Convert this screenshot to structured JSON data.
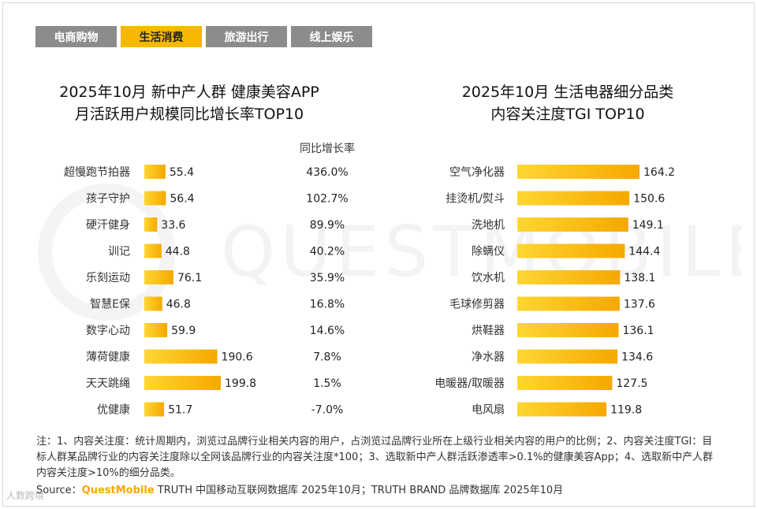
{
  "tabs": [
    {
      "label": "电商购物",
      "active": false
    },
    {
      "label": "生活消费",
      "active": true
    },
    {
      "label": "旅游出行",
      "active": false
    },
    {
      "label": "线上娱乐",
      "active": false
    }
  ],
  "left_title_line1": "2025年10月 新中产人群 健康美容APP",
  "left_title_line2": "月活跃用户规模同比增长率TOP10",
  "right_title_line1": "2025年10月 生活电器细分品类",
  "right_title_line2": "内容关注度TGI TOP10",
  "growth_header": "同比增长率",
  "watermark_text": "QUESTMOBILE",
  "note": "注：1、内容关注度：统计周期内，浏览过品牌行业相关内容的用户，占浏览过品牌行业所在上级行业相关内容的用户的比例；2、内容关注度TGI：目标人群某品牌行业的内容关注度除以全网该品牌行业的内容关注度*100；3、选取新中产人群活跃渗透率>0.1%的健康美容App；4、选取新中产人群内容关注度>10%的细分品类。",
  "source_prefix": "Source：",
  "source_brand": "QuestMobile",
  "source_suffix": " TRUTH 中国移动互联网数据库 2025年10月；TRUTH BRAND 品牌数据库 2025年10月",
  "corner_logo": "人数跨境",
  "colors": {
    "bar_light": "#ffd633",
    "bar_dark": "#f5a800",
    "tab_active": "#f6b800",
    "tab_inactive": "#8c8c8c"
  },
  "chart_data": [
    {
      "type": "bar",
      "orientation": "horizontal",
      "title": "2025年10月 新中产人群 健康美容APP 月活跃用户规模同比增长率TOP10",
      "categories": [
        "超慢跑节拍器",
        "孩子守护",
        "硬汗健身",
        "训记",
        "乐刻运动",
        "智慧E保",
        "数字心动",
        "薄荷健康",
        "天天跳绳",
        "优健康"
      ],
      "values": [
        55.4,
        56.4,
        33.6,
        44.8,
        76.1,
        46.8,
        59.9,
        190.6,
        199.8,
        51.7
      ],
      "value_labels": [
        "55.4",
        "56.4",
        "33.6",
        "44.8",
        "76.1",
        "46.8",
        "59.9",
        "190.6",
        "199.8",
        "51.7"
      ],
      "growth_rates": [
        "436.0%",
        "102.7%",
        "89.9%",
        "40.2%",
        "35.9%",
        "16.8%",
        "14.6%",
        "7.8%",
        "1.5%",
        "-7.0%"
      ],
      "growth_header": "同比增长率",
      "xlim": [
        0,
        199.8
      ]
    },
    {
      "type": "bar",
      "orientation": "horizontal",
      "title": "2025年10月 生活电器细分品类 内容关注度TGI TOP10",
      "categories": [
        "空气净化器",
        "挂烫机/熨斗",
        "洗地机",
        "除螨仪",
        "饮水机",
        "毛球修剪器",
        "烘鞋器",
        "净水器",
        "电暖器/取暖器",
        "电风扇"
      ],
      "values": [
        164.2,
        150.6,
        149.1,
        144.4,
        138.1,
        137.6,
        136.1,
        134.6,
        127.5,
        119.8
      ],
      "value_labels": [
        "164.2",
        "150.6",
        "149.1",
        "144.4",
        "138.1",
        "137.6",
        "136.1",
        "134.6",
        "127.5",
        "119.8"
      ],
      "xlim": [
        0,
        164.2
      ]
    }
  ]
}
